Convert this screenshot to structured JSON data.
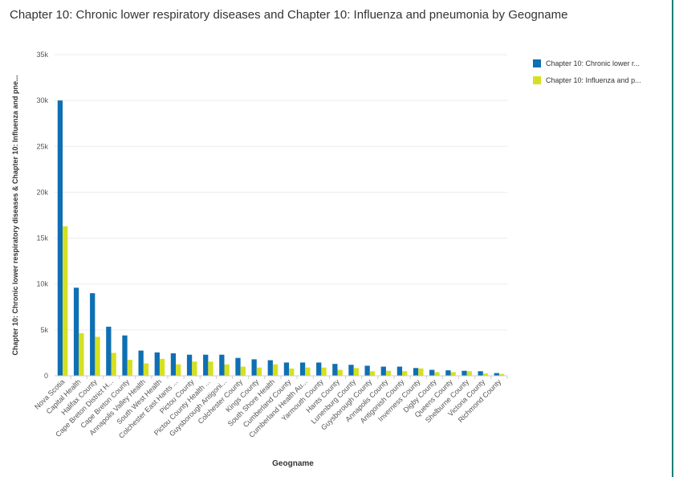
{
  "title": "Chapter 10: Chronic lower respiratory diseases and Chapter 10: Influenza and pneumonia by Geogname",
  "legend": {
    "items": [
      {
        "label": "Chapter 10: Chronic lower r...",
        "color": "#0f6fb3"
      },
      {
        "label": "Chapter 10: Influenza and p...",
        "color": "#d5e022"
      }
    ]
  },
  "chart_data": {
    "type": "bar",
    "title": "Chapter 10: Chronic lower respiratory diseases and Chapter 10: Influenza and pneumonia by Geogname",
    "xlabel": "Geogname",
    "ylabel": "Chapter 10: Chronic lower respiratory diseases & Chapter 10: Influenza and pne...",
    "ylim": [
      0,
      35000
    ],
    "yticks": [
      "0",
      "5k",
      "10k",
      "15k",
      "20k",
      "25k",
      "30k",
      "35k"
    ],
    "grid": true,
    "legend_position": "top-right",
    "categories": [
      "Nova Scotia",
      "Capital Health",
      "Halifax County",
      "Cape Breton District H...",
      "Cape Breton County",
      "Annapolis Valley Health",
      "South West Health",
      "Colchester East Hants ...",
      "Pictou County",
      "Pictou County Health ...",
      "Guysborough Antigoni...",
      "Colchester County",
      "Kings County",
      "South Shore Health",
      "Cumberland County",
      "Cumberland Health Au...",
      "Yarmouth County",
      "Hants County",
      "Lunenburg County",
      "Guysborough County",
      "Annapolis County",
      "Antigonish County",
      "Inverness County",
      "Digby County",
      "Queens County",
      "Shelburne County",
      "Victoria County",
      "Richmond County"
    ],
    "series": [
      {
        "name": "Chapter 10: Chronic lower r...",
        "color": "#0f6fb3",
        "values": [
          30000,
          9600,
          9000,
          5350,
          4400,
          2750,
          2550,
          2450,
          2300,
          2300,
          2300,
          1950,
          1800,
          1700,
          1450,
          1450,
          1450,
          1300,
          1200,
          1100,
          1000,
          1000,
          850,
          650,
          600,
          550,
          500,
          300
        ]
      },
      {
        "name": "Chapter 10: Influenza and p...",
        "color": "#d5e022",
        "values": [
          16300,
          4650,
          4250,
          2500,
          1750,
          1350,
          1850,
          1250,
          1550,
          1550,
          1250,
          1000,
          900,
          1250,
          800,
          900,
          900,
          650,
          850,
          500,
          550,
          500,
          800,
          400,
          400,
          500,
          250,
          200
        ]
      }
    ]
  }
}
